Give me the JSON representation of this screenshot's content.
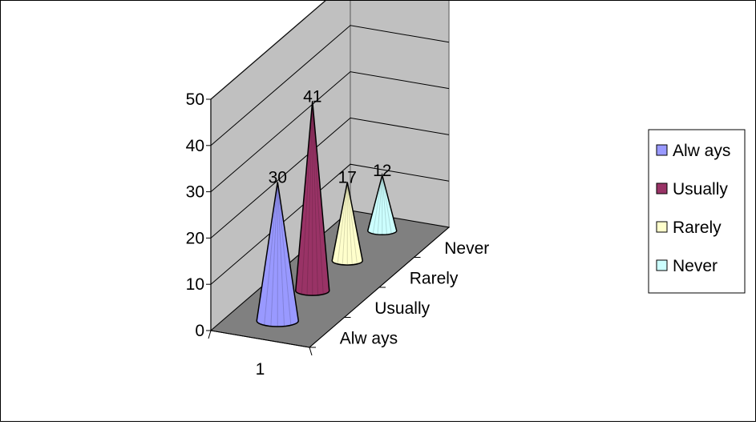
{
  "chart_data": {
    "type": "bar",
    "style": "3d-cone",
    "categories": [
      "1"
    ],
    "depth_categories": [
      "Always",
      "Usually",
      "Rarely",
      "Never"
    ],
    "series": [
      {
        "name": "Always",
        "values": [
          30
        ],
        "color": "#9999ff",
        "label": "30"
      },
      {
        "name": "Usually",
        "values": [
          41
        ],
        "color": "#993366",
        "label": "41"
      },
      {
        "name": "Rarely",
        "values": [
          17
        ],
        "color": "#ffffcc",
        "label": "17"
      },
      {
        "name": "Never",
        "values": [
          12
        ],
        "color": "#ccffff",
        "label": "12"
      }
    ],
    "ylim": [
      0,
      50
    ],
    "yticks": [
      "0",
      "10",
      "20",
      "30",
      "40",
      "50"
    ],
    "depth_tick_labels": [
      "Alw ays",
      "Usually",
      "Rarely",
      "Never"
    ],
    "legend_labels": [
      "Alw ays",
      "Usually",
      "Rarely",
      "Never"
    ],
    "grid": true,
    "legend": "right",
    "wall_color": "#c0c0c0",
    "floor_color": "#808080"
  }
}
